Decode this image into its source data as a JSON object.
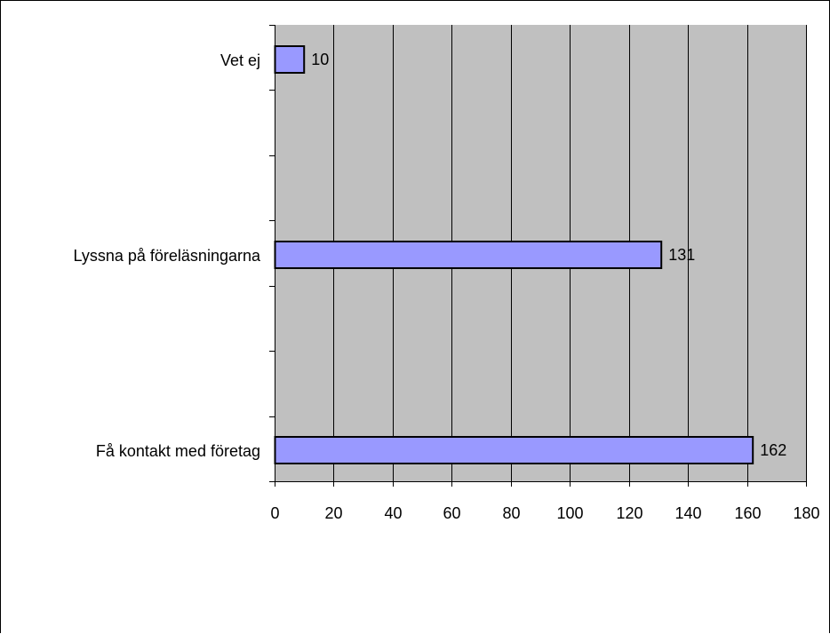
{
  "chart_data": {
    "type": "bar",
    "orientation": "horizontal",
    "title": "",
    "xlabel": "",
    "ylabel": "",
    "categories": [
      "Vet ej",
      "Lyssna på föreläsningarna",
      "Få kontakt med företag"
    ],
    "values": [
      10,
      131,
      162
    ],
    "data_labels": [
      "10",
      "131",
      "162"
    ],
    "xlim": [
      0,
      180
    ],
    "x_ticks": [
      "0",
      "20",
      "40",
      "60",
      "80",
      "100",
      "120",
      "140",
      "160",
      "180"
    ],
    "grid": true,
    "legend": "none",
    "colors": {
      "bar_fill": "#9999ff",
      "bar_stroke": "#000000",
      "plot_background": "#c0c0c0",
      "gridline": "#000000"
    }
  }
}
